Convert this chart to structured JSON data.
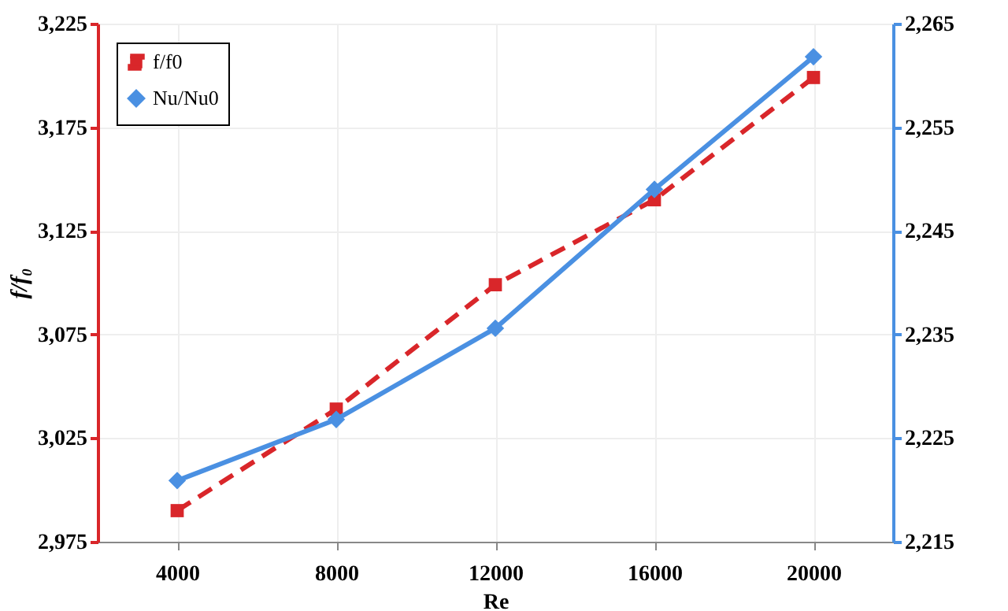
{
  "chart_data": {
    "type": "line",
    "xlabel": "Re",
    "ylabel": "f/f₀",
    "categories": [
      "4000",
      "8000",
      "12000",
      "16000",
      "20000"
    ],
    "series": [
      {
        "name": "f/f0",
        "color": "#d9262a",
        "values": [
          2990,
          3039,
          3099,
          3140,
          3199
        ],
        "marker": "square",
        "line_style": "dashed"
      },
      {
        "name": "Nu/Nu0",
        "color": "#4a90e2",
        "values": [
          2220.9,
          2226.8,
          2235.6,
          2249,
          2261.8
        ],
        "marker": "diamond",
        "line_style": "solid",
        "axis": "y2"
      }
    ],
    "ylim": [
      2975,
      3225
    ],
    "yticks": [
      {
        "value": 2975,
        "label": "2,975"
      },
      {
        "value": 3025,
        "label": "3,025"
      },
      {
        "value": 3075,
        "label": "3,075"
      },
      {
        "value": 3125,
        "label": "3,125"
      },
      {
        "value": 3175,
        "label": "3,175"
      },
      {
        "value": 3225,
        "label": "3,225"
      }
    ],
    "y2lim": [
      2215,
      2265
    ],
    "y2ticks": [
      {
        "value": 2215,
        "label": "2,215"
      },
      {
        "value": 2225,
        "label": "2,225"
      },
      {
        "value": 2235,
        "label": "2,235"
      },
      {
        "value": 2245,
        "label": "2,245"
      },
      {
        "value": 2255,
        "label": "2,255"
      },
      {
        "value": 2265,
        "label": "2,265"
      }
    ],
    "grid": true,
    "legend": "top left"
  }
}
